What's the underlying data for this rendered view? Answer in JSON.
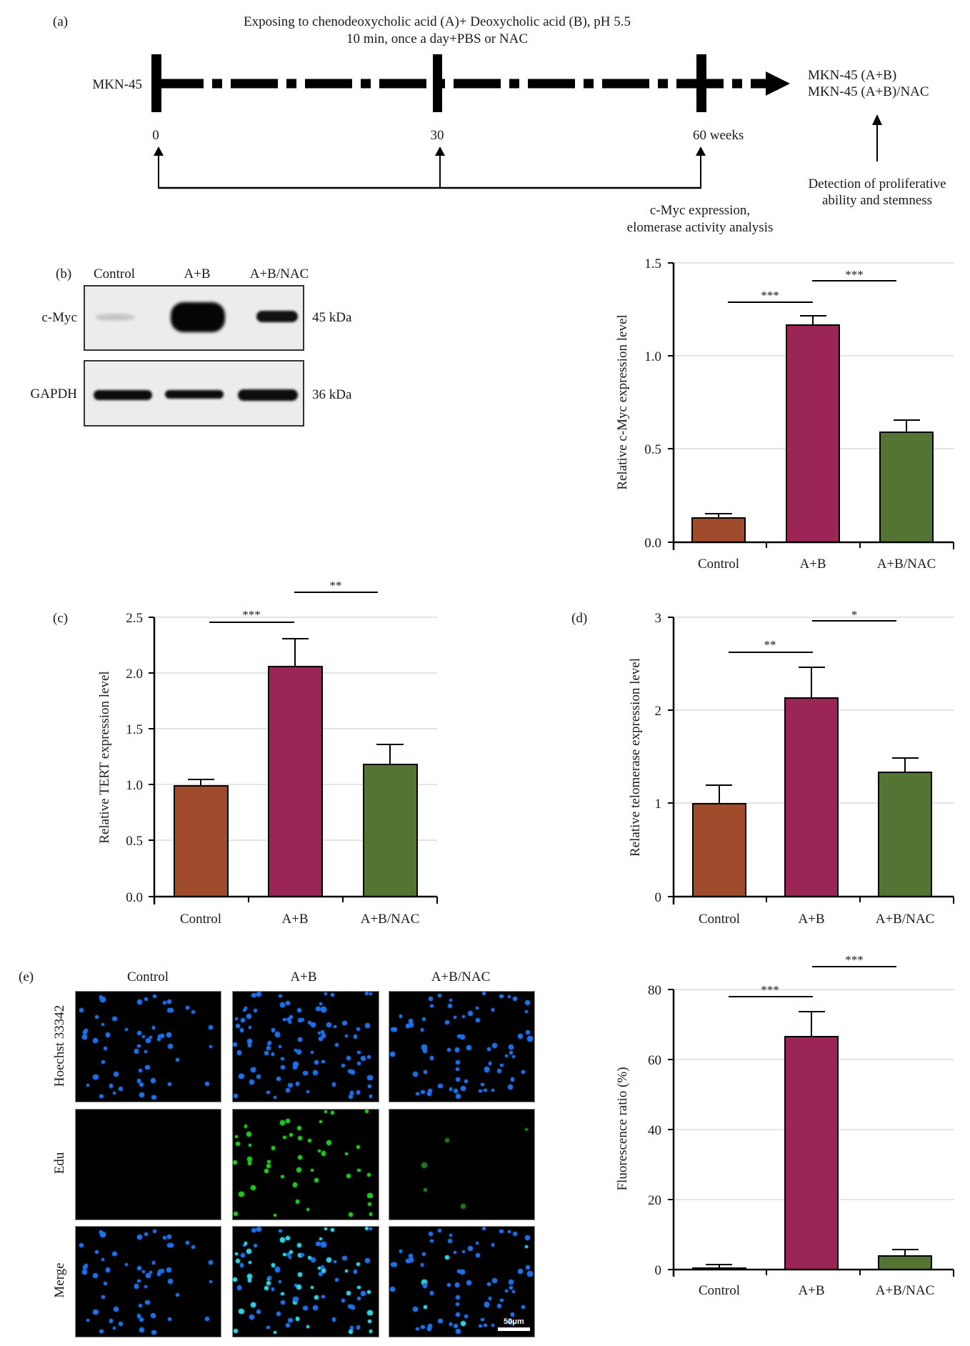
{
  "panel_a": {
    "label": "(a)",
    "title_line1": "Exposing to chenodeoxycholic acid (A)+ Deoxycholic acid (B), pH 5.5",
    "title_line2": "10 min, once a day+PBS or NAC",
    "cell_line": "MKN-45",
    "ticks": [
      "0",
      "30",
      "60 weeks"
    ],
    "outcome_line1": "MKN-45 (A+B)",
    "outcome_line2": "MKN-45 (A+B)/NAC",
    "analysis_line1": "c-Myc expression,",
    "analysis_line2": "elomerase activity analysis",
    "detection_line1": "Detection of proliferative",
    "detection_line2": "ability and stemness"
  },
  "panel_b_blot": {
    "label": "(b)",
    "lanes": [
      "Control",
      "A+B",
      "A+B/NAC"
    ],
    "rows": [
      {
        "protein": "c-Myc",
        "size": "45 kDa"
      },
      {
        "protein": "GAPDH",
        "size": "36 kDa"
      }
    ]
  },
  "panel_e_images": {
    "label": "(e)",
    "columns": [
      "Control",
      "A+B",
      "A+B/NAC"
    ],
    "rows": [
      "Hoechst 33342",
      "Edu",
      "Merge"
    ],
    "scale_bar": "50μm"
  },
  "colors": {
    "control": "#A04B2C",
    "ab": "#9B2656",
    "ab_nac": "#547433",
    "grid": "#e4e4e4"
  },
  "chart_data": [
    {
      "id": "b",
      "type": "bar",
      "title": "",
      "categories": [
        "Control",
        "A+B",
        "A+B/NAC"
      ],
      "values": [
        0.13,
        1.17,
        0.59
      ],
      "errors": [
        0.155,
        1.22,
        0.66
      ],
      "xlabel": "",
      "ylabel": "Relative c-Myc expression level",
      "ylim": [
        0,
        1.5
      ],
      "yticks": [
        "0.0",
        "0.5",
        "1.0",
        "1.5"
      ],
      "grid": true,
      "significance": [
        {
          "from": "Control",
          "to": "A+B",
          "label": "***"
        },
        {
          "from": "A+B",
          "to": "A+B/NAC",
          "label": "***"
        }
      ]
    },
    {
      "id": "c",
      "label": "(c)",
      "type": "bar",
      "categories": [
        "Control",
        "A+B",
        "A+B/NAC"
      ],
      "values": [
        0.99,
        2.06,
        1.18
      ],
      "errors": [
        1.05,
        2.31,
        1.36
      ],
      "ylabel": "Relative TERT expression level",
      "ylim": [
        0,
        2.5
      ],
      "yticks": [
        "0.0",
        "0.5",
        "1.0",
        "1.5",
        "2.0",
        "2.5"
      ],
      "grid": true,
      "significance": [
        {
          "from": "Control",
          "to": "A+B",
          "label": "***"
        },
        {
          "from": "A+B",
          "to": "A+B/NAC",
          "label": "**"
        }
      ]
    },
    {
      "id": "d",
      "label": "(d)",
      "type": "bar",
      "categories": [
        "Control",
        "A+B",
        "A+B/NAC"
      ],
      "values": [
        1.0,
        2.14,
        1.34
      ],
      "errors": [
        1.2,
        2.47,
        1.49
      ],
      "ylabel": "Relative telomerase expression level",
      "ylim": [
        0,
        3
      ],
      "yticks": [
        "0",
        "1",
        "2",
        "3"
      ],
      "grid": true,
      "significance": [
        {
          "from": "Control",
          "to": "A+B",
          "label": "**"
        },
        {
          "from": "A+B",
          "to": "A+B/NAC",
          "label": "*"
        }
      ]
    },
    {
      "id": "e",
      "type": "bar",
      "categories": [
        "Control",
        "A+B",
        "A+B/NAC"
      ],
      "values": [
        0.2,
        66.5,
        3.9
      ],
      "errors": [
        1.3,
        73.6,
        5.7
      ],
      "ylabel": "Fluorescence ratio (%)",
      "ylim": [
        0,
        80
      ],
      "yticks": [
        "0",
        "20",
        "40",
        "60",
        "80"
      ],
      "grid": true,
      "significance": [
        {
          "from": "Control",
          "to": "A+B",
          "label": "***"
        },
        {
          "from": "A+B",
          "to": "A+B/NAC",
          "label": "***"
        }
      ]
    }
  ]
}
